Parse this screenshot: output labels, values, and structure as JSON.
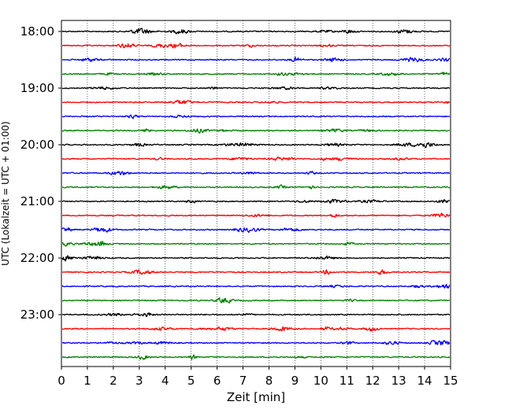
{
  "chart_data": {
    "type": "line",
    "title": "",
    "xlabel": "Zeit  [min]",
    "ylabel": "UTC (Lokalzeit = UTC + 01:00)",
    "xlim": [
      0,
      15
    ],
    "x_ticks": [
      "0",
      "1",
      "2",
      "3",
      "4",
      "5",
      "6",
      "7",
      "8",
      "9",
      "10",
      "11",
      "12",
      "13",
      "14",
      "15"
    ],
    "y_tick_labels": [
      "18:00",
      "19:00",
      "20:00",
      "21:00",
      "22:00",
      "23:00"
    ],
    "trace_start": "18:00",
    "trace_interval_min": 15,
    "trace_count": 24,
    "trace_colors": [
      "#000000",
      "#ff0000",
      "#0000ff",
      "#008000"
    ],
    "grid": "vertical-dotted"
  }
}
